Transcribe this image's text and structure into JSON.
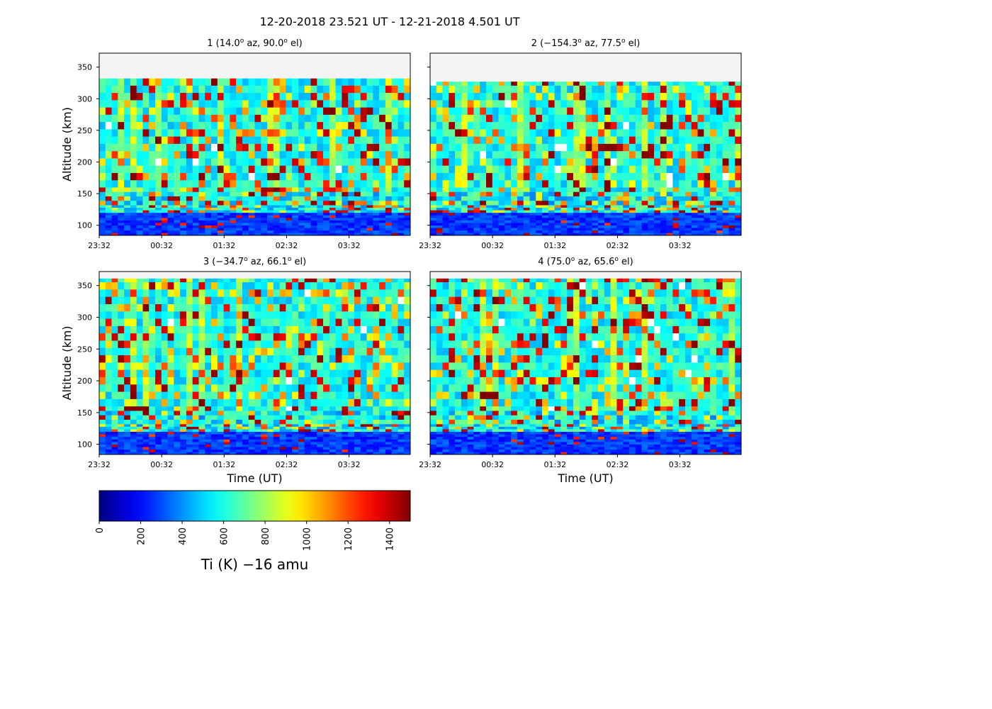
{
  "figure": {
    "suptitle": "12-20-2018 23.521 UT - 12-21-2018 4.501 UT",
    "background": "#ffffff"
  },
  "chart_data": [
    {
      "type": "heatmap",
      "title_parts": [
        "1 (14.0",
        "o",
        " az,  90.0",
        "o",
        " el)"
      ],
      "beam": {
        "index": 1,
        "azimuth_deg": 14.0,
        "elevation_deg": 90.0
      },
      "xlabel": "",
      "ylabel": "Altitude (km)",
      "xtick_labels": [
        "23:32",
        "00:32",
        "01:32",
        "02:32",
        "03:32"
      ],
      "ytick_labels": [
        "100",
        "150",
        "200",
        "250",
        "300",
        "350"
      ],
      "ytick_values": [
        100,
        150,
        200,
        250,
        300,
        350
      ],
      "xlim_hours_ut": [
        23.521,
        28.501
      ],
      "ylim_km": [
        84,
        372
      ],
      "data_top_km": 332,
      "data_range_k": [
        0,
        1500
      ],
      "cmap": "jet",
      "background_above_data": "#f4f4f4",
      "seed": 11
    },
    {
      "type": "heatmap",
      "title_parts": [
        "2 (−154.3",
        "o",
        " az,  77.5",
        "o",
        " el)"
      ],
      "beam": {
        "index": 2,
        "azimuth_deg": -154.3,
        "elevation_deg": 77.5
      },
      "xlabel": "",
      "ylabel": "",
      "xtick_labels": [
        "23:32",
        "00:32",
        "01:32",
        "02:32",
        "03:32"
      ],
      "ytick_labels": [],
      "ytick_values": [
        100,
        150,
        200,
        250,
        300,
        350
      ],
      "xlim_hours_ut": [
        23.521,
        28.501
      ],
      "ylim_km": [
        84,
        372
      ],
      "data_top_km": 327,
      "data_range_k": [
        0,
        1500
      ],
      "cmap": "jet",
      "background_above_data": "#f4f4f4",
      "seed": 23
    },
    {
      "type": "heatmap",
      "title_parts": [
        "3 (−34.7",
        "o",
        " az,  66.1",
        "o",
        " el)"
      ],
      "beam": {
        "index": 3,
        "azimuth_deg": -34.7,
        "elevation_deg": 66.1
      },
      "xlabel": "Time (UT)",
      "ylabel": "Altitude (km)",
      "xtick_labels": [
        "23:32",
        "00:32",
        "01:32",
        "02:32",
        "03:32"
      ],
      "ytick_labels": [
        "100",
        "150",
        "200",
        "250",
        "300",
        "350"
      ],
      "ytick_values": [
        100,
        150,
        200,
        250,
        300,
        350
      ],
      "xlim_hours_ut": [
        23.521,
        28.501
      ],
      "ylim_km": [
        84,
        372
      ],
      "data_top_km": 361,
      "data_range_k": [
        0,
        1500
      ],
      "cmap": "jet",
      "background_above_data": "#f4f4f4",
      "seed": 37
    },
    {
      "type": "heatmap",
      "title_parts": [
        "4 (75.0",
        "o",
        " az,  65.6",
        "o",
        " el)"
      ],
      "beam": {
        "index": 4,
        "azimuth_deg": 75.0,
        "elevation_deg": 65.6
      },
      "xlabel": "Time (UT)",
      "ylabel": "",
      "xtick_labels": [
        "23:32",
        "00:32",
        "01:32",
        "02:32",
        "03:32"
      ],
      "ytick_labels": [],
      "ytick_values": [
        100,
        150,
        200,
        250,
        300,
        350
      ],
      "xlim_hours_ut": [
        23.521,
        28.501
      ],
      "ylim_km": [
        84,
        372
      ],
      "data_top_km": 361,
      "data_range_k": [
        0,
        1500
      ],
      "cmap": "jet",
      "background_above_data": "#f4f4f4",
      "seed": 51
    }
  ],
  "colorbar": {
    "label": "Ti (K)  −16 amu",
    "range": [
      0,
      1500
    ],
    "tick_values": [
      0,
      200,
      400,
      600,
      800,
      1000,
      1200,
      1400
    ],
    "tick_labels": [
      "0",
      "200",
      "400",
      "600",
      "800",
      "1000",
      "1200",
      "1400"
    ],
    "cmap": "jet"
  }
}
